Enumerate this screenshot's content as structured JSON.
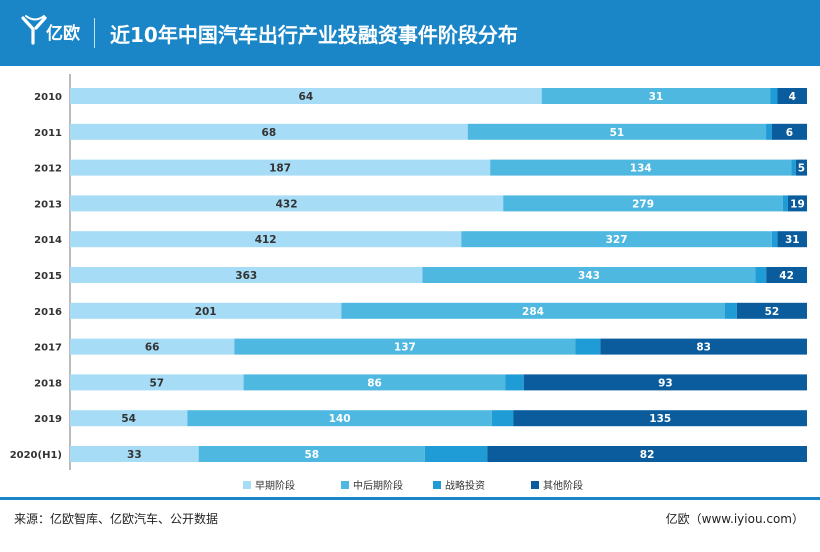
{
  "header": {
    "logo_text": "亿欧",
    "title": "近10年中国汽车出行产业投融资事件阶段分布"
  },
  "footer": {
    "source": "来源：亿欧智库、亿欧汽车、公开数据",
    "producer": "亿欧（www.iyiou.com）"
  },
  "colors": {
    "header_bg": "#1a86c8",
    "series": [
      "#a6dcf5",
      "#4fb8e0",
      "#1f9bd6",
      "#0b5c9c"
    ]
  },
  "chart_data": {
    "type": "bar",
    "orientation": "horizontal",
    "stacked": true,
    "normalized": true,
    "categories": [
      "2010",
      "2011",
      "2012",
      "2013",
      "2014",
      "2015",
      "2016",
      "2017",
      "2018",
      "2019",
      "2020(H1)"
    ],
    "series": [
      {
        "name": "早期阶段",
        "values": [
          64,
          68,
          187,
          432,
          412,
          363,
          201,
          66,
          57,
          54,
          33
        ]
      },
      {
        "name": "中后期阶段",
        "values": [
          31,
          51,
          134,
          279,
          327,
          343,
          284,
          137,
          86,
          140,
          58
        ]
      },
      {
        "name": "战略投资",
        "values": [
          1,
          1,
          2,
          5,
          6,
          11,
          9,
          10,
          6,
          10,
          16
        ]
      },
      {
        "name": "其他阶段",
        "values": [
          4,
          6,
          5,
          19,
          31,
          42,
          52,
          83,
          93,
          135,
          82
        ]
      }
    ],
    "label_series": [
      0,
      1,
      3
    ],
    "legend_position": "bottom",
    "grid": false
  }
}
